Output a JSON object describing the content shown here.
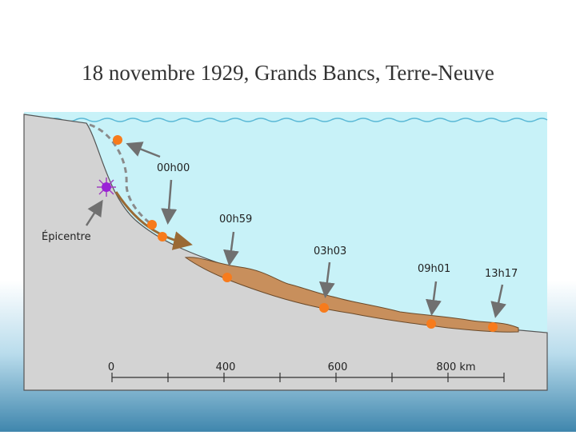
{
  "title": "18 novembre 1929, Grands Bancs, Terre-Neuve",
  "epicenter_label": "Épicentre",
  "times": [
    "00h00",
    "00h59",
    "03h03",
    "09h01",
    "13h17"
  ],
  "scale_labels": [
    "0",
    "400",
    "600",
    "800 km"
  ]
}
